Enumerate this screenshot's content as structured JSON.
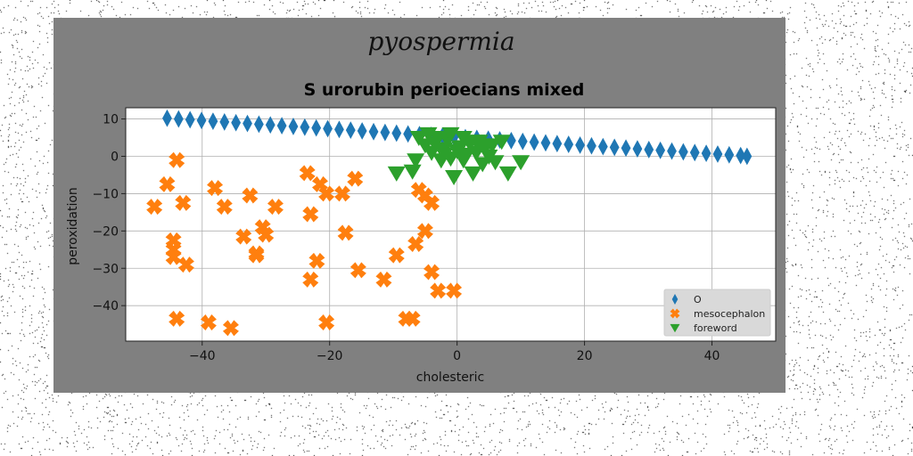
{
  "chart_data": {
    "type": "scatter",
    "suptitle": "pyospermia",
    "title": "S urorubin perioecians mixed",
    "xlabel": "cholesteric",
    "ylabel": "peroxidation",
    "xlim": [
      -52,
      50
    ],
    "ylim": [
      -49.5,
      13
    ],
    "xticks": [
      -40,
      -20,
      0,
      20,
      40
    ],
    "xtick_labels": [
      "−40",
      "−20",
      "0",
      "20",
      "40"
    ],
    "yticks": [
      10,
      0,
      -10,
      -20,
      -30,
      -40
    ],
    "ytick_labels": [
      "10",
      "0",
      "−10",
      "−20",
      "−30",
      "−40"
    ],
    "grid": true,
    "legend_position": "lower-right",
    "series": [
      {
        "name": "O",
        "marker": "thin-diamond",
        "color": "#1f77b4",
        "x": [
          -45.5,
          -43.7,
          -41.9,
          -40.1,
          -38.3,
          -36.5,
          -34.7,
          -32.9,
          -31.1,
          -29.3,
          -27.5,
          -25.7,
          -23.9,
          -22.1,
          -20.3,
          -18.5,
          -16.7,
          -14.9,
          -13.1,
          -11.3,
          -9.5,
          -7.7,
          -5.9,
          -4.1,
          -2.3,
          -0.5,
          1.3,
          3.1,
          4.9,
          6.7,
          8.5,
          10.3,
          12.1,
          13.9,
          15.7,
          17.5,
          19.3,
          21.1,
          22.9,
          24.7,
          26.5,
          28.3,
          30.1,
          31.9,
          33.7,
          35.5,
          37.3,
          39.1,
          40.9,
          42.7,
          44.5,
          45.5
        ],
        "y": [
          10.2,
          10.0,
          9.8,
          9.6,
          9.4,
          9.2,
          9.0,
          8.8,
          8.6,
          8.4,
          8.2,
          8.0,
          7.8,
          7.6,
          7.4,
          7.2,
          7.0,
          6.8,
          6.6,
          6.4,
          6.2,
          6.0,
          5.8,
          5.6,
          5.4,
          5.2,
          5.0,
          4.8,
          4.6,
          4.4,
          4.2,
          4.0,
          3.8,
          3.6,
          3.4,
          3.2,
          3.0,
          2.8,
          2.6,
          2.4,
          2.2,
          2.0,
          1.8,
          1.6,
          1.4,
          1.2,
          1.0,
          0.8,
          0.6,
          0.4,
          0.2,
          0.0
        ]
      },
      {
        "name": "mesocephalon",
        "marker": "X",
        "color": "#ff7f0e",
        "x": [
          -47.5,
          -45.5,
          -44.5,
          -43.0,
          -44.5,
          -44.5,
          -42.5,
          -44.0,
          -39.0,
          -38.0,
          -36.5,
          -35.5,
          -32.5,
          -33.5,
          -31.5,
          -30.0,
          -30.5,
          -31.5,
          -28.5,
          -23.5,
          -23.0,
          -21.5,
          -20.5,
          -22.0,
          -23.0,
          -20.5,
          -18.0,
          -17.5,
          -16.0,
          -15.5,
          -11.5,
          -9.5,
          -8.0,
          -7.0,
          -6.5,
          -6.0,
          -5.0,
          -5.0,
          -4.0,
          -4.0,
          -3.0,
          -0.5,
          -44.0
        ],
        "y": [
          -13.5,
          -7.5,
          -22.5,
          -12.5,
          -25.0,
          -27.0,
          -29.0,
          -43.5,
          -44.5,
          -8.5,
          -13.5,
          -46.0,
          -10.5,
          -21.5,
          -26.0,
          -21.0,
          -19.0,
          -26.5,
          -13.5,
          -4.5,
          -15.5,
          -7.5,
          -10.0,
          -28.0,
          -33.0,
          -44.5,
          -10.0,
          -20.5,
          -6.0,
          -30.5,
          -33.0,
          -26.5,
          -43.5,
          -43.5,
          -23.5,
          -9.0,
          -10.5,
          -20.0,
          -12.5,
          -31.0,
          -36.0,
          -36.0,
          -1.0
        ]
      },
      {
        "name": "foreword",
        "marker": "triangle-down",
        "color": "#2ca02c",
        "x": [
          -9.5,
          -7.0,
          -6.5,
          -6.0,
          -5.0,
          -4.5,
          -4.0,
          -3.5,
          -3.0,
          -2.5,
          -2.0,
          -1.5,
          -1.0,
          -0.5,
          0.0,
          0.5,
          1.0,
          1.5,
          2.0,
          2.5,
          3.0,
          3.5,
          4.0,
          4.5,
          5.0,
          5.5,
          6.0,
          7.0,
          8.0,
          10.0,
          -1.0,
          -2.0,
          1.0,
          3.0
        ],
        "y": [
          -4.5,
          -4.0,
          -1.0,
          5.0,
          3.0,
          6.0,
          1.0,
          3.5,
          5.0,
          -1.0,
          2.0,
          4.5,
          6.0,
          -5.5,
          1.5,
          2.5,
          5.0,
          0.5,
          3.5,
          -4.5,
          1.0,
          4.0,
          -2.0,
          2.5,
          0.0,
          3.0,
          -1.5,
          4.0,
          -4.5,
          -1.5,
          -0.5,
          0.5,
          -1.0,
          4.0
        ]
      }
    ]
  },
  "colors": {
    "figure_background": "#808080",
    "axes_background": "#ffffff",
    "grid": "#b0b0b0",
    "legend_background": "#d9d9d9"
  }
}
